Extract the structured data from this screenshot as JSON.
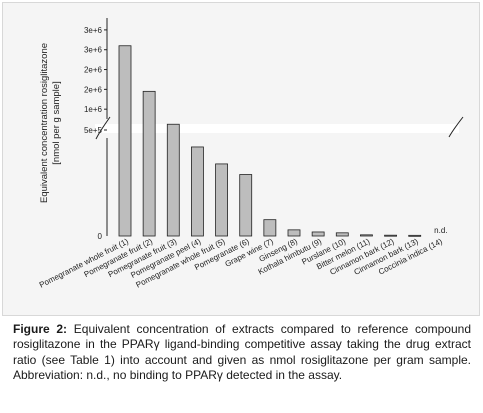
{
  "caption": {
    "label": "Figure 2:",
    "text": " Equivalent concentration of extracts compared to reference compound rosiglitazone in the PPARγ ligand-binding competitive assay taking the drug extract ratio (see Table 1) into account and given as nmol rosiglitazone per gram sample. Abbreviation: n.d., no binding to PPARγ detected in the assay."
  },
  "chart_data": {
    "type": "bar",
    "ylabel_line1": "Equivalent concentration rosiglitazone",
    "ylabel_line2": "[nmol per g sample]",
    "upper_ticks": [
      "3e+6",
      "3e+6",
      "2e+6",
      "2e+6",
      "1e+6",
      "5e+5"
    ],
    "upper_tick_values": [
      3000000,
      2500000,
      2000000,
      1500000,
      1000000,
      500000
    ],
    "lower_ticks": [
      "0"
    ],
    "y_broken": true,
    "break_range": [
      0,
      500000
    ],
    "categories": [
      "Pomegranate whole fruit (1)",
      "Pomegranate fruit (2)",
      "Pomegranate fruit (3)",
      "Pomegranate peel (4)",
      "Pomegranate whole fruit (5)",
      "Pomegranate (6)",
      "Grape wine (7)",
      "Ginseng (8)",
      "Kothala himbutu (9)",
      "Purslane (10)",
      "Bitter melon (11)",
      "Cinnamon bark (12)",
      "Cinnamon bark (13)",
      "Coccinia indica (14)"
    ],
    "values": [
      2600000,
      1450000,
      620000,
      420000,
      340000,
      290000,
      77000,
      29000,
      19000,
      15000,
      5500,
      3800,
      3200,
      0
    ],
    "annotations": [
      {
        "category_index": 13,
        "text": "n.d."
      }
    ],
    "bar_color": "#bdbdbd",
    "bar_edge_color": "#222222",
    "background_color": "#f5f5f5"
  }
}
